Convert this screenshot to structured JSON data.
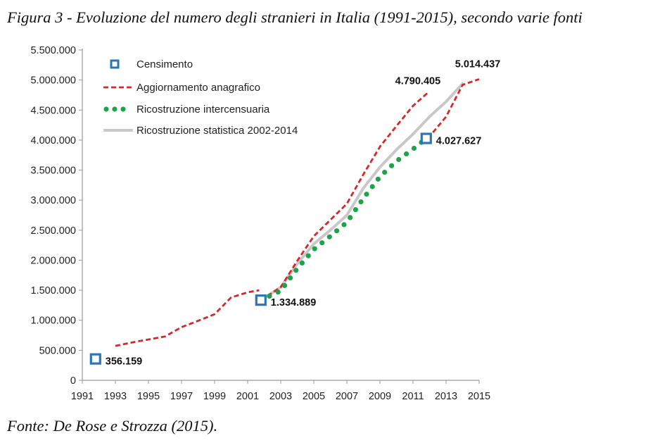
{
  "figure": {
    "title": "Figura 3 - Evoluzione del numero degli stranieri in Italia (1991-2015), secondo varie fonti",
    "source": "Fonte: De Rose e Strozza (2015)."
  },
  "colors": {
    "censimento": "#2e75b6",
    "aggiornamento": "#d62828",
    "ricostruzione_intercensuaria": "#1fa34a",
    "ricostruzione_statistica": "#c8c8c8",
    "axis": "#999999"
  },
  "chart_data": {
    "type": "line",
    "title": "",
    "xlabel": "",
    "ylabel": "",
    "xlim": [
      1991,
      2015
    ],
    "ylim": [
      0,
      5500000
    ],
    "x_ticks": [
      "1991",
      "1993",
      "1995",
      "1997",
      "1999",
      "2001",
      "2003",
      "2005",
      "2007",
      "2009",
      "2011",
      "2013",
      "2015"
    ],
    "y_ticks": [
      "0",
      "500.000",
      "1.000.000",
      "1.500.000",
      "2.000.000",
      "2.500.000",
      "3.000.000",
      "3.500.000",
      "4.000.000",
      "4.500.000",
      "5.000.000",
      "5.500.000"
    ],
    "grid": false,
    "legend_position": "top-left",
    "series": [
      {
        "name": "Censimento",
        "style": "markers",
        "points": [
          [
            1991.8,
            356159
          ],
          [
            2001.8,
            1334889
          ],
          [
            2011.8,
            4027627
          ]
        ]
      },
      {
        "name": "Aggiornamento anagrafico",
        "style": "dashed",
        "segments": [
          [
            [
              1993,
              573000
            ],
            [
              1994,
              630000
            ],
            [
              1995,
              680000
            ],
            [
              1996,
              730000
            ],
            [
              1997,
              885000
            ],
            [
              1998,
              990000
            ],
            [
              1999,
              1100000
            ],
            [
              2000,
              1380000
            ],
            [
              2001,
              1465000
            ],
            [
              2001.7,
              1500000
            ]
          ],
          [
            [
              2001.8,
              1335000
            ],
            [
              2003,
              1550000
            ],
            [
              2004,
              1990000
            ],
            [
              2005,
              2400000
            ],
            [
              2006,
              2670000
            ],
            [
              2007,
              2940000
            ],
            [
              2008,
              3430000
            ],
            [
              2009,
              3890000
            ],
            [
              2010,
              4235000
            ],
            [
              2011,
              4570000
            ],
            [
              2011.9,
              4790405
            ]
          ],
          [
            [
              2011.9,
              4027627
            ],
            [
              2013,
              4390000
            ],
            [
              2014,
              4920000
            ],
            [
              2015,
              5014437
            ]
          ]
        ]
      },
      {
        "name": "Ricostruzione intercensuaria",
        "style": "dotted",
        "points": [
          [
            2001.8,
            1334889
          ],
          [
            2003,
            1490000
          ],
          [
            2004,
            1860000
          ],
          [
            2005,
            2180000
          ],
          [
            2006,
            2400000
          ],
          [
            2007,
            2630000
          ],
          [
            2008,
            3030000
          ],
          [
            2009,
            3390000
          ],
          [
            2010,
            3650000
          ],
          [
            2011,
            3850000
          ],
          [
            2011.8,
            4027627
          ]
        ]
      },
      {
        "name": "Ricostruzione statistica 2002-2014",
        "style": "solid",
        "points": [
          [
            2001.8,
            1334889
          ],
          [
            2003,
            1550000
          ],
          [
            2004,
            1940000
          ],
          [
            2005,
            2270000
          ],
          [
            2006,
            2500000
          ],
          [
            2007,
            2750000
          ],
          [
            2008,
            3200000
          ],
          [
            2009,
            3550000
          ],
          [
            2010,
            3840000
          ],
          [
            2011,
            4100000
          ],
          [
            2012,
            4390000
          ],
          [
            2013,
            4640000
          ],
          [
            2014,
            4940000
          ]
        ]
      }
    ],
    "data_labels": [
      {
        "text": "356.159",
        "x": 1991.8,
        "y": 356159,
        "anchor": "right"
      },
      {
        "text": "1.334.889",
        "x": 2001.8,
        "y": 1334889,
        "anchor": "right"
      },
      {
        "text": "4.027.627",
        "x": 2011.8,
        "y": 4027627,
        "anchor": "right"
      },
      {
        "text": "4.790.405",
        "x": 2011.9,
        "y": 4790405,
        "anchor": "above-left"
      },
      {
        "text": "5.014.437",
        "x": 2015,
        "y": 5014437,
        "anchor": "above"
      }
    ]
  }
}
